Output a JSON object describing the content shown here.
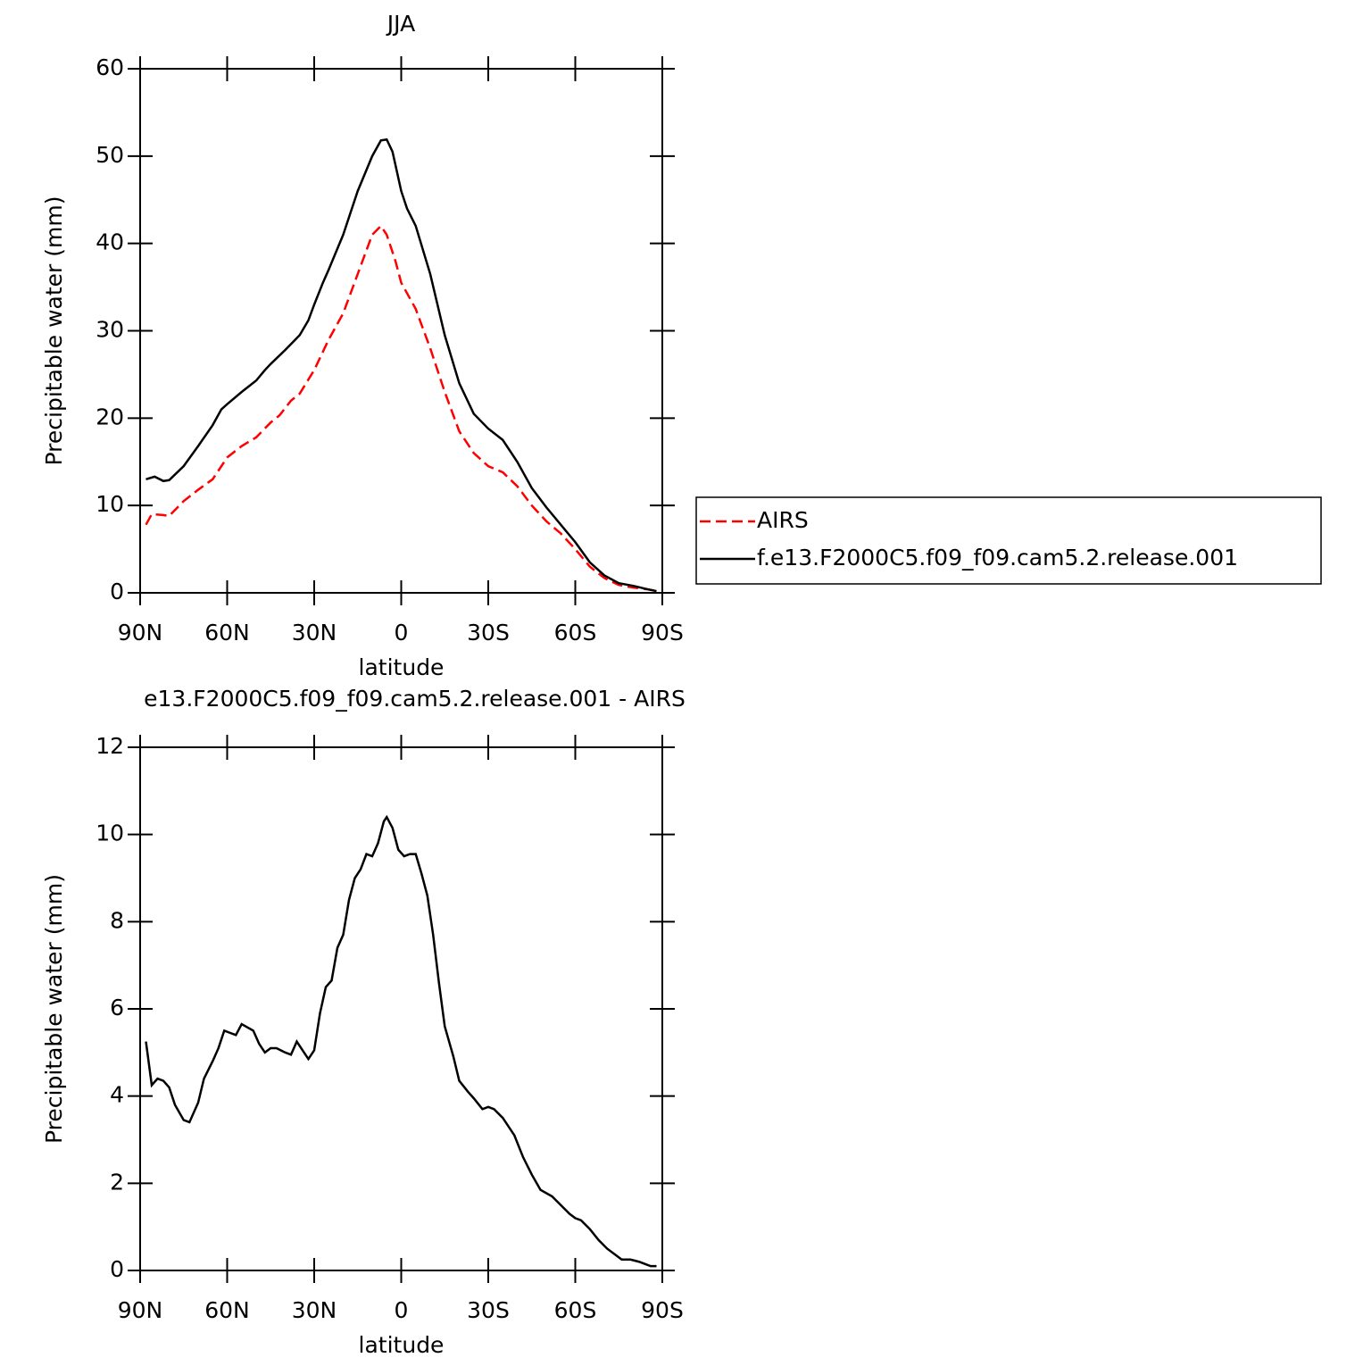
{
  "chart_data": [
    {
      "type": "line",
      "title": "JJA",
      "xlabel": "latitude",
      "ylabel": "Precipitable water (mm)",
      "xlim": [
        90,
        -90
      ],
      "ylim": [
        0,
        60
      ],
      "xticks": [
        {
          "value": 90,
          "label": "90N"
        },
        {
          "value": 60,
          "label": "60N"
        },
        {
          "value": 30,
          "label": "30N"
        },
        0,
        {
          "value": -30,
          "label": "30S"
        },
        {
          "value": -60,
          "label": "60S"
        },
        {
          "value": -90,
          "label": "90S"
        }
      ],
      "yticks": [
        0,
        10,
        20,
        30,
        40,
        50,
        60
      ],
      "legend": "right",
      "series": [
        {
          "name": "AIRS",
          "color": "#ff0000",
          "linestyle": "dashed",
          "x": [
            88,
            86,
            82,
            80,
            75,
            70,
            65,
            60,
            55,
            50,
            45,
            42,
            38,
            35,
            30,
            25,
            20,
            15,
            10,
            7,
            5,
            2,
            0,
            -5,
            -10,
            -15,
            -20,
            -25,
            -30,
            -35,
            -40,
            -45,
            -50,
            -55,
            -60,
            -65,
            -70,
            -75,
            -80,
            -85,
            -88
          ],
          "values": [
            7.8,
            9.0,
            8.9,
            8.8,
            10.5,
            11.8,
            13.0,
            15.5,
            16.8,
            17.8,
            19.5,
            20.3,
            22.0,
            22.8,
            25.5,
            29.0,
            32.0,
            36.5,
            41.0,
            42.0,
            41.0,
            38.0,
            35.5,
            32.5,
            28.0,
            23.0,
            18.5,
            16.0,
            14.5,
            13.8,
            12.2,
            10.0,
            8.2,
            6.8,
            5.0,
            3.0,
            1.7,
            0.9,
            0.6,
            0.4,
            0.2
          ]
        },
        {
          "name": "f.e13.F2000C5.f09_f09.cam5.2.release.001",
          "color": "#000000",
          "linestyle": "solid",
          "x": [
            88,
            85,
            82,
            80,
            75,
            70,
            65,
            62,
            60,
            55,
            50,
            47,
            45,
            40,
            35,
            32,
            30,
            27,
            25,
            20,
            15,
            10,
            7,
            5,
            3,
            0,
            -2,
            -5,
            -10,
            -15,
            -20,
            -25,
            -30,
            -35,
            -40,
            -45,
            -50,
            -55,
            -60,
            -65,
            -70,
            -75,
            -80,
            -85,
            -88
          ],
          "values": [
            13.0,
            13.3,
            12.8,
            12.9,
            14.5,
            16.8,
            19.2,
            21.0,
            21.6,
            23.0,
            24.3,
            25.5,
            26.2,
            27.8,
            29.5,
            31.2,
            33.0,
            35.5,
            37.0,
            41.0,
            46.0,
            50.0,
            51.8,
            51.9,
            50.5,
            46.0,
            44.0,
            42.0,
            36.5,
            29.5,
            24.0,
            20.5,
            18.8,
            17.5,
            15.0,
            12.0,
            9.8,
            7.8,
            5.8,
            3.5,
            2.0,
            1.1,
            0.8,
            0.4,
            0.2
          ]
        }
      ]
    },
    {
      "type": "line",
      "title": "e13.F2000C5.f09_f09.cam5.2.release.001 - AIRS",
      "xlabel": "latitude",
      "ylabel": "Precipitable water (mm)",
      "xlim": [
        90,
        -90
      ],
      "ylim": [
        0,
        12
      ],
      "xticks": [
        {
          "value": 90,
          "label": "90N"
        },
        {
          "value": 60,
          "label": "60N"
        },
        {
          "value": 30,
          "label": "30N"
        },
        0,
        {
          "value": -30,
          "label": "30S"
        },
        {
          "value": -60,
          "label": "60S"
        },
        {
          "value": -90,
          "label": "90S"
        }
      ],
      "yticks": [
        0,
        2,
        4,
        6,
        8,
        10,
        12
      ],
      "series": [
        {
          "color": "#000000",
          "linestyle": "solid",
          "x": [
            88,
            86,
            84,
            82,
            80,
            78,
            75,
            73,
            70,
            68,
            65,
            63,
            61,
            59,
            57,
            55,
            51,
            49,
            47,
            45,
            43,
            40,
            38,
            36,
            32,
            30,
            28,
            26,
            24,
            22,
            20,
            18,
            16,
            14,
            12,
            10,
            8,
            6,
            5,
            3,
            1,
            -1,
            -3,
            -5,
            -7,
            -9,
            -11,
            -13,
            -15,
            -18,
            -20,
            -23,
            -25,
            -28,
            -30,
            -32,
            -35,
            -37,
            -39,
            -42,
            -45,
            -48,
            -52,
            -55,
            -58,
            -60,
            -62,
            -65,
            -68,
            -71,
            -74,
            -76,
            -79,
            -82,
            -84,
            -86,
            -88
          ],
          "values": [
            5.25,
            4.25,
            4.4,
            4.35,
            4.2,
            3.8,
            3.45,
            3.4,
            3.85,
            4.4,
            4.8,
            5.1,
            5.5,
            5.45,
            5.4,
            5.65,
            5.5,
            5.2,
            5.0,
            5.1,
            5.1,
            5.0,
            4.95,
            5.25,
            4.85,
            5.05,
            5.9,
            6.5,
            6.65,
            7.4,
            7.7,
            8.5,
            9.0,
            9.2,
            9.55,
            9.5,
            9.8,
            10.3,
            10.4,
            10.15,
            9.65,
            9.5,
            9.55,
            9.55,
            9.1,
            8.6,
            7.7,
            6.6,
            5.6,
            4.9,
            4.35,
            4.1,
            3.95,
            3.7,
            3.75,
            3.7,
            3.5,
            3.3,
            3.1,
            2.6,
            2.2,
            1.85,
            1.7,
            1.5,
            1.3,
            1.2,
            1.15,
            0.95,
            0.7,
            0.5,
            0.35,
            0.25,
            0.25,
            0.2,
            0.15,
            0.1,
            0.1
          ]
        }
      ]
    }
  ]
}
